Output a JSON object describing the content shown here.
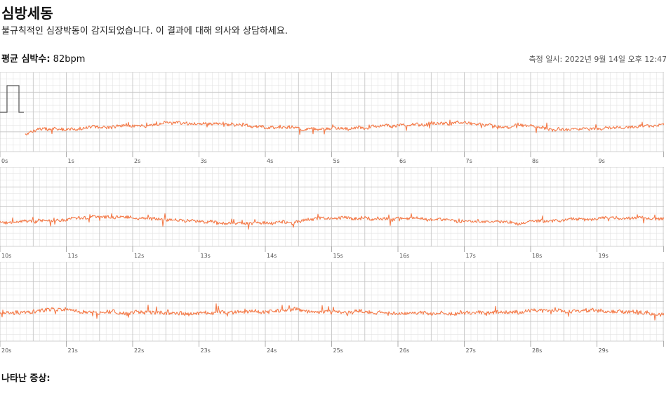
{
  "header": {
    "title": "심방세동",
    "subtitle": "불규칙적인 심장박동이 감지되었습니다. 이 결과에 대해 의사와 상담하세요.",
    "avg_label": "평균 심박수:",
    "avg_value": "82bpm",
    "datetime": "측정 일시: 2022년 9월 14일 오후 12:47"
  },
  "footer": {
    "symptoms_label": "나타난 증상:"
  },
  "colors": {
    "trace": "#f47a48",
    "grid_minor": "#e3e3e3",
    "grid_major": "#c4c4c4",
    "calibration": "#555555"
  },
  "chart_data": {
    "type": "line",
    "title": "",
    "xlabel": "",
    "ylabel": "",
    "strips": [
      {
        "ticks": [
          "0s",
          "1s",
          "2s",
          "3s",
          "4s",
          "5s",
          "6s",
          "7s",
          "8s",
          "9s"
        ]
      },
      {
        "ticks": [
          "10s",
          "11s",
          "12s",
          "13s",
          "14s",
          "15s",
          "16s",
          "17s",
          "18s",
          "19s"
        ]
      },
      {
        "ticks": [
          "20s",
          "21s",
          "22s",
          "23s",
          "24s",
          "25s",
          "26s",
          "27s",
          "28s",
          "29s"
        ]
      }
    ]
  }
}
